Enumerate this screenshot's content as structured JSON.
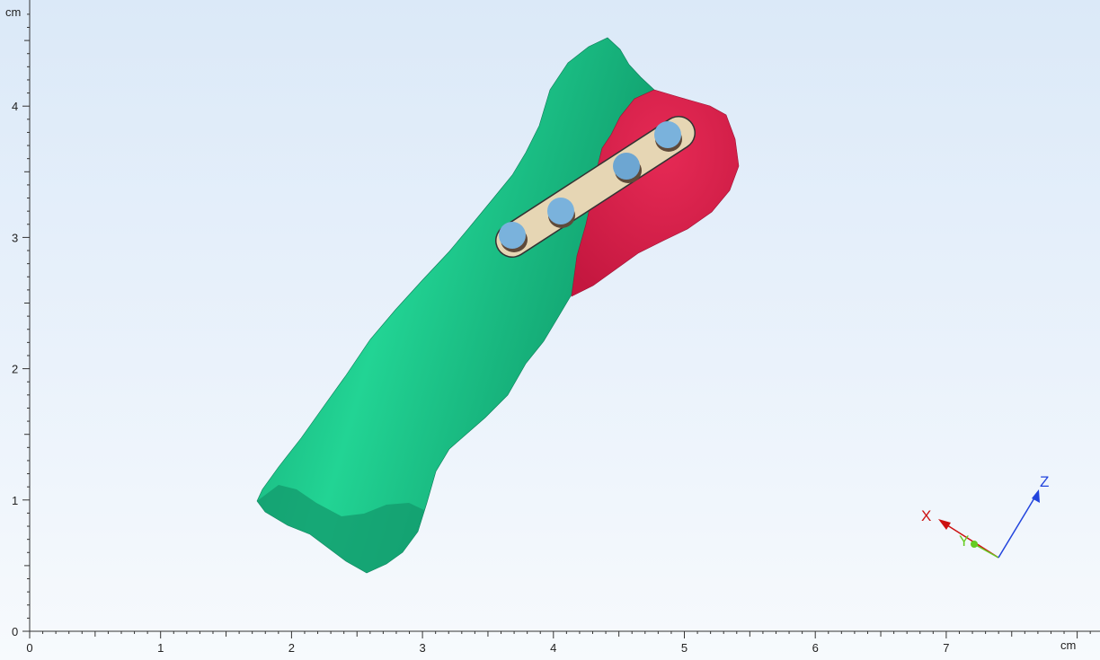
{
  "viewport": {
    "x_axis": {
      "unit": "cm",
      "ticks": [
        "0",
        "1",
        "2",
        "3",
        "4",
        "5",
        "6",
        "7"
      ],
      "minor_per_major": 10,
      "extent_cm": 8.2
    },
    "y_axis": {
      "unit": "cm",
      "ticks": [
        "0",
        "1",
        "2",
        "3",
        "4"
      ],
      "minor_per_major": 10,
      "extent_cm": 4.7
    }
  },
  "model": {
    "bone": {
      "name": "bone",
      "color": "#1ec48c",
      "shade_color": "#139f70"
    },
    "fragment": {
      "name": "fragment",
      "color": "#d81f4a"
    },
    "plate": {
      "name": "plate",
      "color": "#e6d6b4",
      "outline": "#333333"
    },
    "screws": {
      "color": "#7ab2dc",
      "count": 4
    }
  },
  "orientation_triad": {
    "x_label": "X",
    "x_color": "#cc1111",
    "y_label": "Y",
    "y_color": "#66cc22",
    "z_label": "Z",
    "z_color": "#2244dd"
  }
}
